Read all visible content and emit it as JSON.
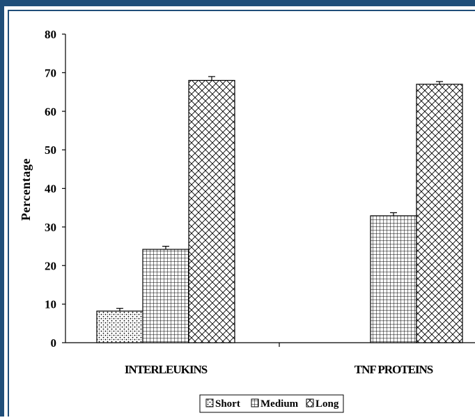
{
  "chart_data": {
    "type": "bar",
    "title": "",
    "xlabel": "",
    "ylabel": "Percentage",
    "ylim": [
      0,
      80
    ],
    "yticks": [
      0,
      10,
      20,
      30,
      40,
      50,
      60,
      70,
      80
    ],
    "categories": [
      "INTERLEUKINS",
      "TNF PROTEINS"
    ],
    "series": [
      {
        "name": "Short",
        "values": [
          8.2,
          null
        ],
        "errors": [
          0.7,
          null
        ],
        "pattern": "dots"
      },
      {
        "name": "Medium",
        "values": [
          24.2,
          32.9
        ],
        "errors": [
          0.8,
          0.8
        ],
        "pattern": "grid"
      },
      {
        "name": "Long",
        "values": [
          68.0,
          67.0
        ],
        "errors": [
          1.0,
          0.7
        ],
        "pattern": "crosshatch"
      }
    ],
    "legend_position": "bottom",
    "grid": false
  },
  "colors": {
    "frame": "#1f4e79",
    "bar_fill": "#ffffff",
    "bar_stroke": "#000000",
    "pattern": "#000000"
  }
}
